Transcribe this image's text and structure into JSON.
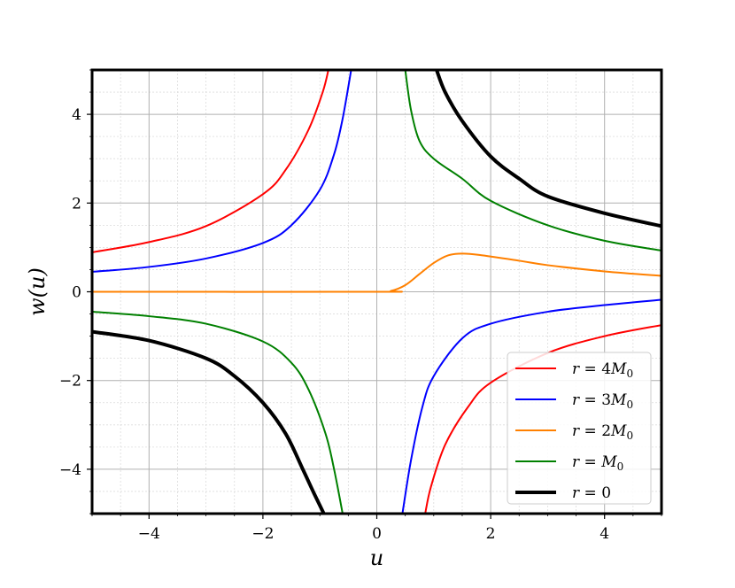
{
  "chart_data": {
    "type": "line",
    "title": "",
    "xlabel": "u",
    "ylabel": "w(u)",
    "xlim": [
      -5,
      5
    ],
    "ylim": [
      -5,
      5
    ],
    "x_ticks": [
      -4,
      -2,
      0,
      2,
      4
    ],
    "y_ticks": [
      -4,
      -2,
      0,
      2,
      4
    ],
    "x_tick_labels": [
      "−4",
      "−2",
      "0",
      "2",
      "4"
    ],
    "y_tick_labels": [
      "−4",
      "−2",
      "0",
      "2",
      "4"
    ],
    "grid": true,
    "minor_grid": true,
    "legend_position": "lower-right",
    "series": [
      {
        "name": "r = 4M0",
        "legend_parts": [
          "r",
          " = 4",
          "M",
          "0"
        ],
        "color": "#ff0000",
        "width": 2,
        "segments": [
          [
            [
              -5,
              0.89
            ],
            [
              -4,
              1.12
            ],
            [
              -3,
              1.48
            ],
            [
              -2,
              2.2
            ],
            [
              -1.6,
              2.75
            ],
            [
              -1.2,
              3.65
            ],
            [
              -0.95,
              4.5
            ],
            [
              -0.85,
              5.0
            ]
          ],
          [
            [
              0.85,
              -5.0
            ],
            [
              0.95,
              -4.4
            ],
            [
              1.2,
              -3.45
            ],
            [
              1.6,
              -2.6
            ],
            [
              2,
              -2.05
            ],
            [
              3,
              -1.38
            ],
            [
              4,
              -1.0
            ],
            [
              5,
              -0.75
            ]
          ]
        ]
      },
      {
        "name": "r = 3M0",
        "legend_parts": [
          "r",
          " = 3",
          "M",
          "0"
        ],
        "color": "#0000ff",
        "width": 2,
        "segments": [
          [
            [
              -5,
              0.45
            ],
            [
              -4,
              0.56
            ],
            [
              -3,
              0.75
            ],
            [
              -2,
              1.1
            ],
            [
              -1.5,
              1.5
            ],
            [
              -1,
              2.3
            ],
            [
              -0.75,
              3.1
            ],
            [
              -0.6,
              3.9
            ],
            [
              -0.45,
              5.0
            ]
          ],
          [
            [
              0.45,
              -5.0
            ],
            [
              0.6,
              -3.8
            ],
            [
              0.8,
              -2.6
            ],
            [
              1,
              -1.9
            ],
            [
              1.5,
              -1.05
            ],
            [
              2,
              -0.72
            ],
            [
              3,
              -0.45
            ],
            [
              4,
              -0.3
            ],
            [
              5,
              -0.18
            ]
          ]
        ]
      },
      {
        "name": "r = 2M0",
        "legend_parts": [
          "r",
          " = 2",
          "M",
          "0"
        ],
        "color": "#ff8000",
        "width": 2,
        "segments": [
          [
            [
              -5,
              0.0
            ],
            [
              0,
              0.0
            ],
            [
              0.25,
              0.02
            ],
            [
              0.5,
              0.15
            ],
            [
              0.75,
              0.4
            ],
            [
              1.0,
              0.65
            ],
            [
              1.25,
              0.82
            ],
            [
              1.5,
              0.86
            ],
            [
              1.8,
              0.83
            ],
            [
              2.5,
              0.7
            ],
            [
              3,
              0.6
            ],
            [
              4,
              0.46
            ],
            [
              5,
              0.36
            ]
          ]
        ]
      },
      {
        "name": "r = M0",
        "legend_parts": [
          "r",
          " = ",
          "M",
          "0"
        ],
        "color": "#008000",
        "width": 2,
        "segments": [
          [
            [
              -5,
              -0.45
            ],
            [
              -4,
              -0.55
            ],
            [
              -3,
              -0.72
            ],
            [
              -2,
              -1.12
            ],
            [
              -1.5,
              -1.6
            ],
            [
              -1.2,
              -2.2
            ],
            [
              -0.9,
              -3.2
            ],
            [
              -0.75,
              -4.0
            ],
            [
              -0.6,
              -5.0
            ]
          ],
          [
            [
              0.5,
              5.0
            ],
            [
              0.6,
              4.1
            ],
            [
              0.75,
              3.4
            ],
            [
              1,
              3.0
            ],
            [
              1.5,
              2.55
            ],
            [
              2,
              2.05
            ],
            [
              3,
              1.5
            ],
            [
              4,
              1.15
            ],
            [
              5,
              0.93
            ]
          ]
        ]
      },
      {
        "name": "r = 0",
        "legend_parts": [
          "r",
          " = 0",
          "",
          ""
        ],
        "color": "#000000",
        "width": 4,
        "segments": [
          [
            [
              -5,
              -0.9
            ],
            [
              -4,
              -1.1
            ],
            [
              -3,
              -1.5
            ],
            [
              -2.5,
              -1.9
            ],
            [
              -2,
              -2.5
            ],
            [
              -1.6,
              -3.2
            ],
            [
              -1.3,
              -4.0
            ],
            [
              -1.1,
              -4.55
            ],
            [
              -0.93,
              -5.0
            ]
          ],
          [
            [
              1.05,
              5.0
            ],
            [
              1.2,
              4.5
            ],
            [
              1.5,
              3.85
            ],
            [
              2,
              3.05
            ],
            [
              2.5,
              2.55
            ],
            [
              3,
              2.15
            ],
            [
              4,
              1.77
            ],
            [
              5,
              1.48
            ]
          ]
        ]
      }
    ]
  }
}
